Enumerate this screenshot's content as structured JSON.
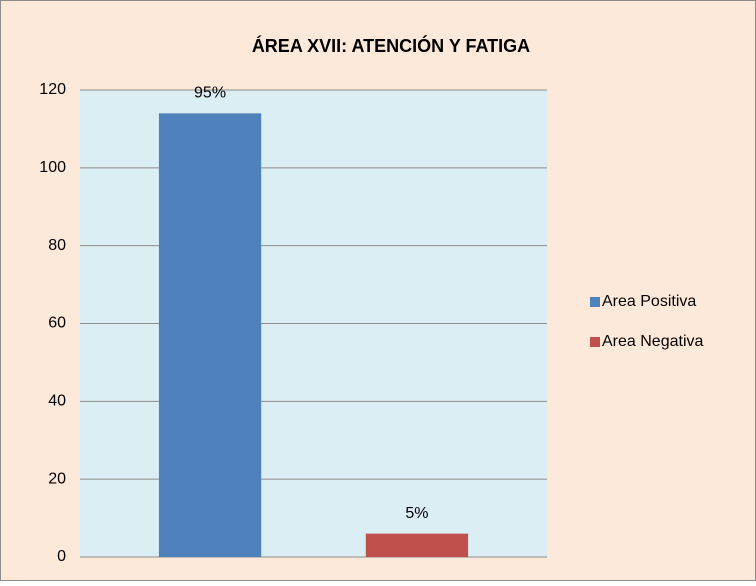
{
  "chart_data": {
    "type": "bar",
    "title": "ÁREA XVII: ATENCIÓN Y FATIGA",
    "categories": [
      null
    ],
    "series": [
      {
        "name": "Area Positiva",
        "color": "#4f81bd",
        "values": [
          114
        ],
        "value_labels": [
          "95%"
        ]
      },
      {
        "name": "Area Negativa",
        "color": "#c0504d",
        "values": [
          6
        ],
        "value_labels": [
          "5%"
        ]
      }
    ],
    "ylim": [
      0,
      120
    ],
    "yticks": [
      0,
      20,
      40,
      60,
      80,
      100,
      120
    ],
    "grid": true,
    "legend": "right"
  }
}
